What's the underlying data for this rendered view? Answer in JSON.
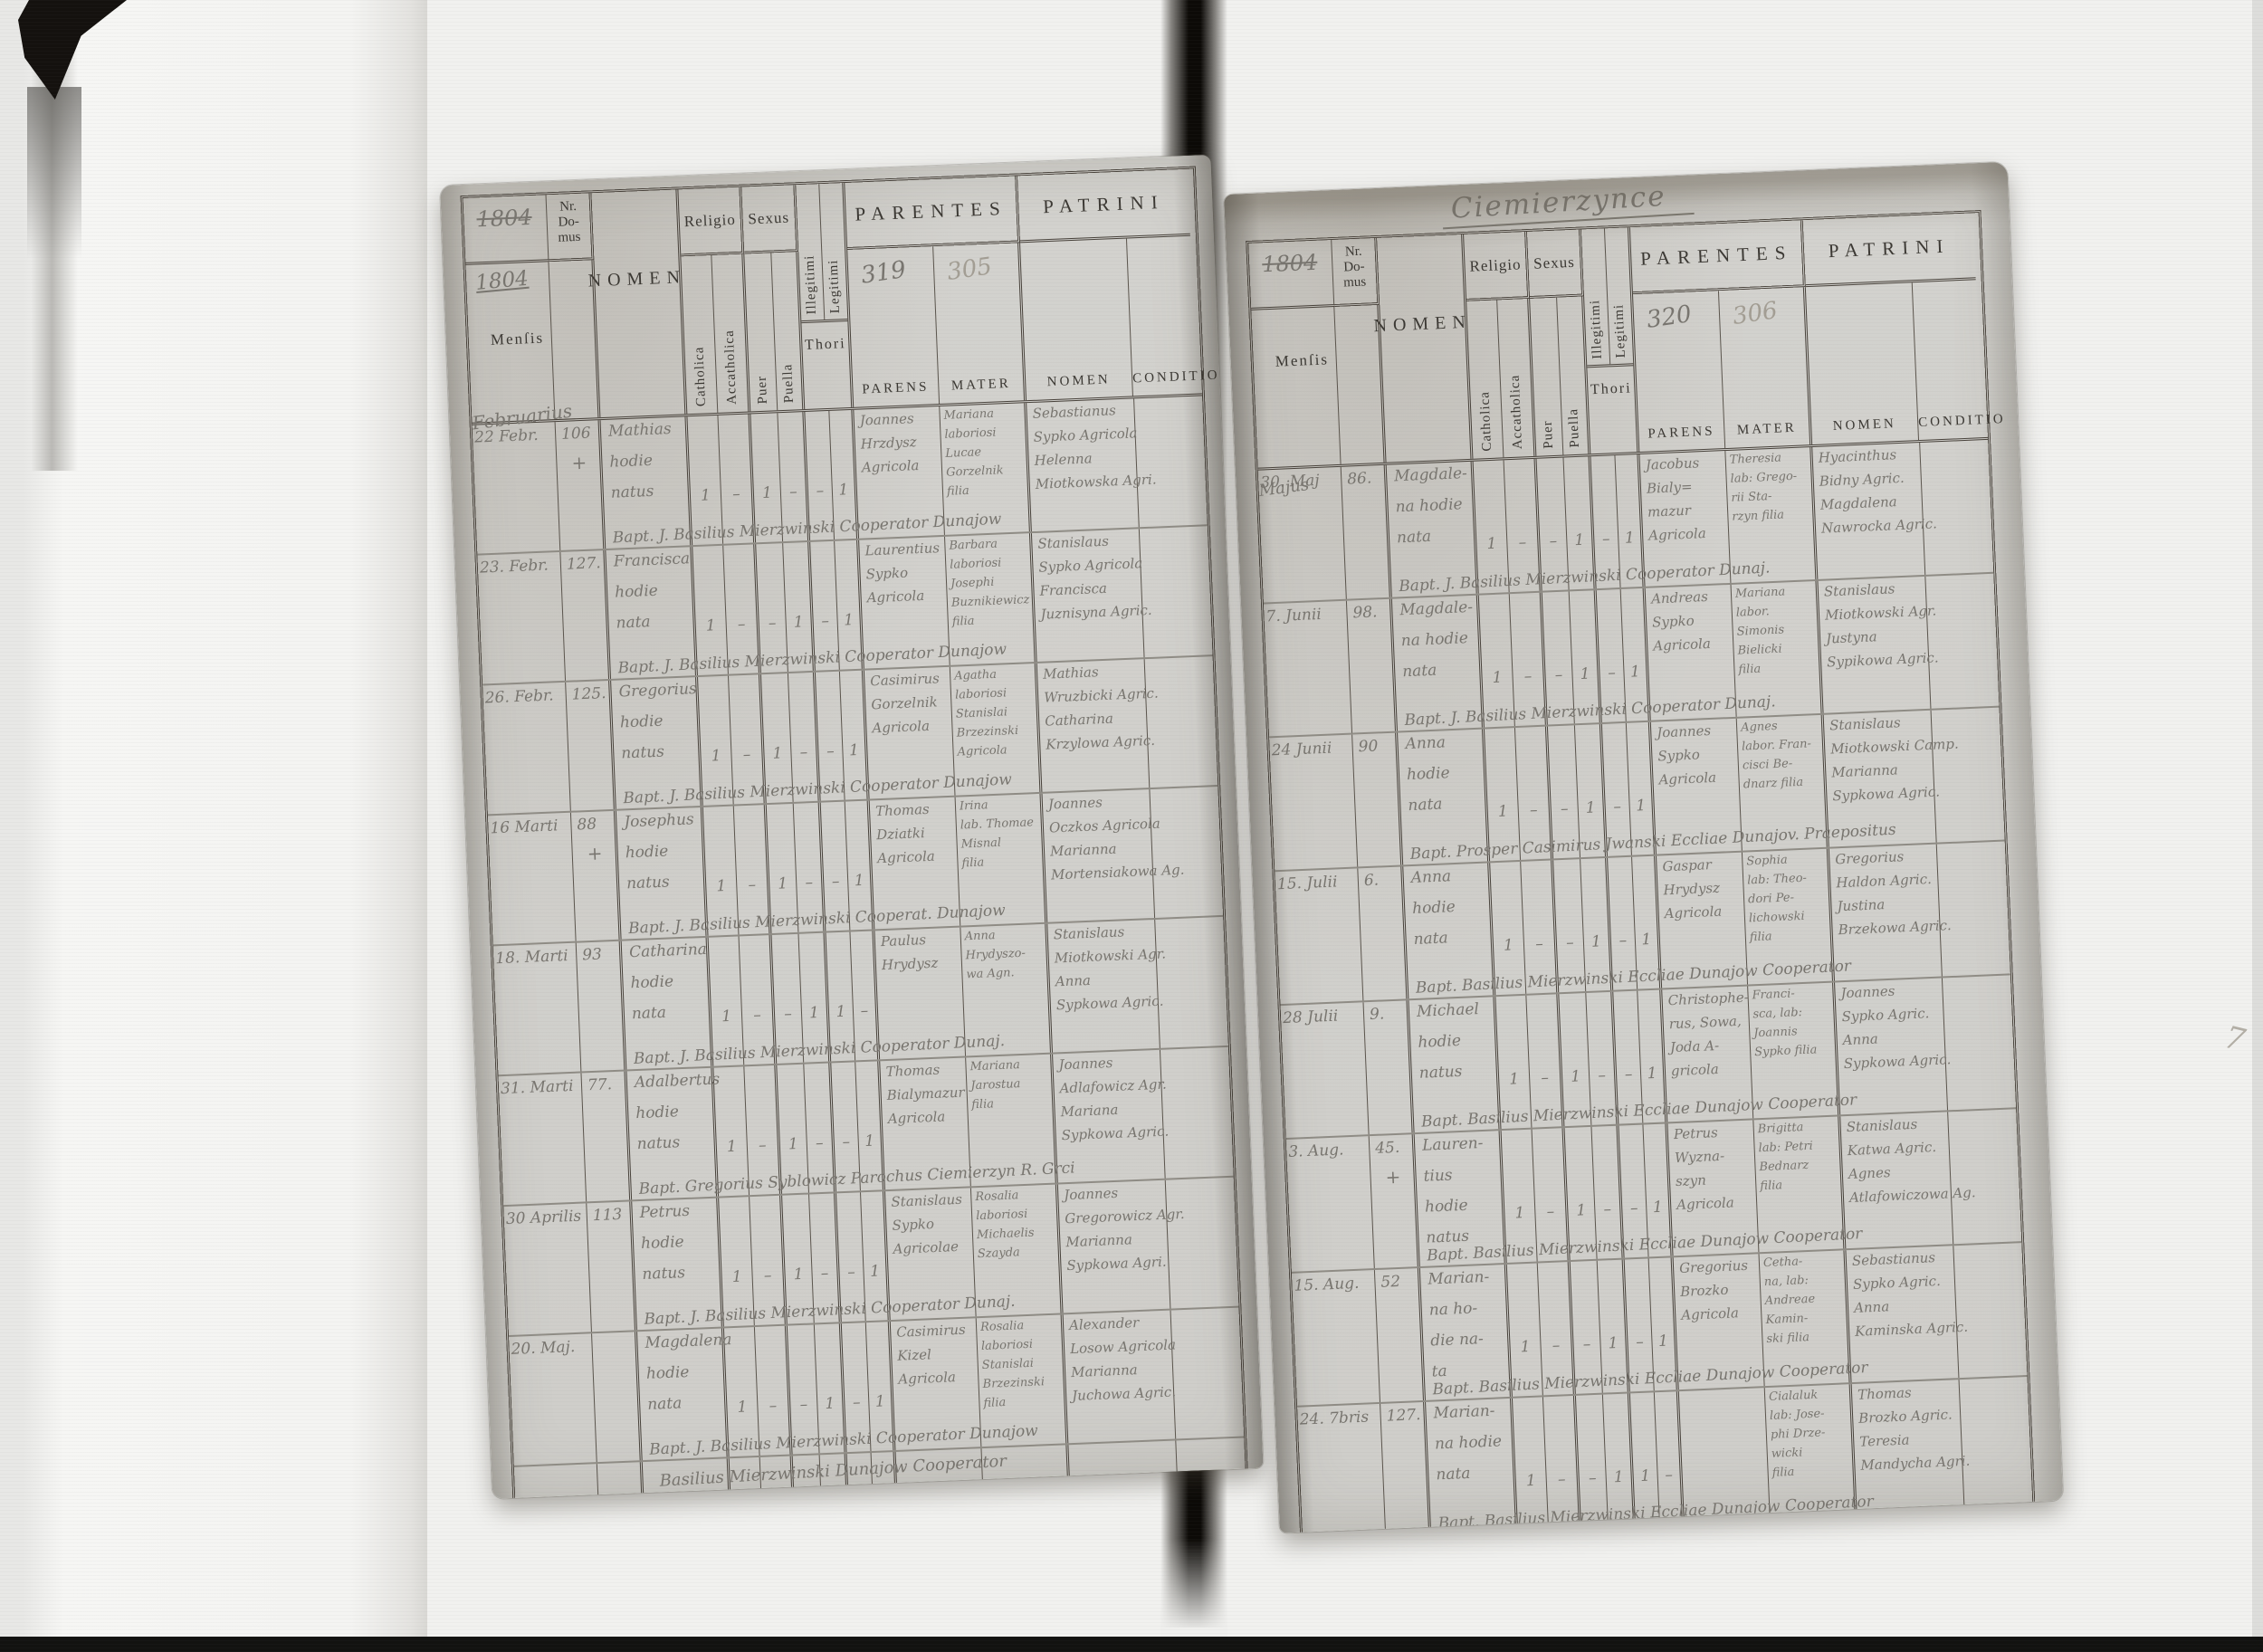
{
  "document_kind_note": "Scanned 1804 Latin baptismal register, two-page opening",
  "table_headers": {
    "mensis": "Menſis",
    "nr_domus": [
      "Nr.",
      "Do-",
      "mus"
    ],
    "nomen": "NOMEN",
    "religio": "Religio",
    "catholica": "Catholica",
    "accatholica": "Accatholica",
    "sexus": "Sexus",
    "puer": "Puer",
    "puella": "Puella",
    "illegitimi": "Illegitimi",
    "legitimi": "Legitimi",
    "thori": "Thori",
    "parentes": "PARENTES",
    "parens": "PARENS",
    "mater": "MATER",
    "patrini": "PATRINI",
    "patrini_nomen": "NOMEN",
    "conditio": "CONDITIO"
  },
  "left_page": {
    "year_struck": "1804",
    "year": "1804",
    "month_annotation": "Februarius",
    "parens_page_number": "319",
    "mater_page_number": "305",
    "closing_line": "Basilius Mierzwinski Dunajow Cooperator",
    "records": [
      {
        "date": "22 Febr.",
        "house_nr": "106",
        "house_mark": "+",
        "name_lines": [
          "Mathias",
          "hodie",
          "natus"
        ],
        "ticks": [
          "1",
          "–",
          "1",
          "–",
          "–",
          "1"
        ],
        "parens_lines": [
          "Joannes",
          "Hrzdysz",
          "Agricola"
        ],
        "mater_lines": [
          "Mariana",
          "laboriosi",
          "Lucae",
          "Gorzelnik",
          "filia"
        ],
        "patrini_lines": [
          "Sebastianus",
          "Sypko Agricola",
          "Helenna",
          "Miotkowska Agri."
        ],
        "baptizer_line": "Bapt. J. Basilius Mierzwinski Cooperator Dunajow"
      },
      {
        "date": "23. Febr.",
        "house_nr": "127.",
        "name_lines": [
          "Francisca",
          "hodie",
          "nata"
        ],
        "ticks": [
          "1",
          "–",
          "–",
          "1",
          "–",
          "1"
        ],
        "parens_lines": [
          "Laurentius",
          "Sypko",
          "Agricola"
        ],
        "mater_lines": [
          "Barbara",
          "laboriosi",
          "Josephi",
          "Buznikiewicz",
          "filia"
        ],
        "patrini_lines": [
          "Stanislaus",
          "Sypko Agricola",
          "Francisca",
          "Juznisyna Agric."
        ],
        "baptizer_line": "Bapt. J. Basilius Mierzwinski Cooperator Dunajow"
      },
      {
        "date": "26. Febr.",
        "house_nr": "125.",
        "name_lines": [
          "Gregorius",
          "hodie",
          "natus"
        ],
        "ticks": [
          "1",
          "–",
          "1",
          "–",
          "–",
          "1"
        ],
        "parens_lines": [
          "Casimirus",
          "Gorzelnik",
          "Agricola"
        ],
        "mater_lines": [
          "Agatha",
          "laboriosi",
          "Stanislai",
          "Brzezinski",
          "Agricola"
        ],
        "patrini_lines": [
          "Mathias",
          "Wruzbicki Agric.",
          "Catharina",
          "Krzylowa Agric."
        ],
        "baptizer_line": "Bapt. J. Basilius Mierzwinski Cooperator Dunajow"
      },
      {
        "date": "16 Marti",
        "house_nr": "88",
        "house_mark": "+",
        "name_lines": [
          "Josephus",
          "hodie",
          "natus"
        ],
        "ticks": [
          "1",
          "–",
          "1",
          "–",
          "–",
          "1"
        ],
        "parens_lines": [
          "Thomas",
          "Dziatki",
          "Agricola"
        ],
        "mater_lines": [
          "Irina",
          "lab. Thomae",
          "Misnal",
          "filia"
        ],
        "patrini_lines": [
          "Joannes",
          "Oczkos Agricola",
          "Marianna",
          "Mortensiakowa Ag."
        ],
        "baptizer_line": "Bapt. J. Basilius Mierzwinski Cooperat. Dunajow"
      },
      {
        "date": "18. Marti",
        "house_nr": "93",
        "name_lines": [
          "Catharina",
          "hodie",
          "nata"
        ],
        "ticks": [
          "1",
          "–",
          "–",
          "1",
          "1",
          "–"
        ],
        "parens_lines": [
          "Paulus",
          "Hrydysz"
        ],
        "mater_lines": [
          "Anna",
          "Hrydyszo-",
          "wa Agn."
        ],
        "patrini_lines": [
          "Stanislaus",
          "Miotkowski Agr.",
          "Anna",
          "Sypkowa Agric."
        ],
        "baptizer_line": "Bapt. J. Basilius Mierzwinski Cooperator Dunaj."
      },
      {
        "date": "31. Marti",
        "house_nr": "77.",
        "name_lines": [
          "Adalbertus",
          "hodie",
          "natus"
        ],
        "ticks": [
          "1",
          "–",
          "1",
          "–",
          "–",
          "1"
        ],
        "parens_lines": [
          "Thomas",
          "Bialymazur",
          "Agricola"
        ],
        "mater_lines": [
          "Mariana",
          "Jarostua",
          "filia"
        ],
        "patrini_lines": [
          "Joannes",
          "Adlafowicz Agr.",
          "Mariana",
          "Sypkowa Agric."
        ],
        "baptizer_line": "Bapt. Gregorius Syblowicz Parochus Ciemierzyn R. Grci"
      },
      {
        "date": "30 Aprilis",
        "house_nr": "113",
        "name_lines": [
          "Petrus",
          "hodie",
          "natus"
        ],
        "ticks": [
          "1",
          "–",
          "1",
          "–",
          "–",
          "1"
        ],
        "parens_lines": [
          "Stanislaus",
          "Sypko",
          "Agricolae"
        ],
        "mater_lines": [
          "Rosalia",
          "laboriosi",
          "Michaelis",
          "Szayda"
        ],
        "patrini_lines": [
          "Joannes",
          "Gregorowicz Agr.",
          "Marianna",
          "Sypkowa Agri."
        ],
        "baptizer_line": "Bapt. J. Basilius Mierzwinski Cooperator Dunaj."
      },
      {
        "date": "20. Maj.",
        "house_nr": "",
        "name_lines": [
          "Magdalena",
          "hodie",
          "nata"
        ],
        "ticks": [
          "1",
          "–",
          "–",
          "1",
          "–",
          "1"
        ],
        "parens_lines": [
          "Casimirus",
          "Kizel",
          "Agricola"
        ],
        "mater_lines": [
          "Rosalia",
          "laboriosi",
          "Stanislai",
          "Brzezinski",
          "filia"
        ],
        "patrini_lines": [
          "Alexander",
          "Losow Agricola",
          "Marianna",
          "Juchowa Agric."
        ],
        "baptizer_line": "Bapt. J. Basilius Mierzwinski Cooperator Dunajow"
      }
    ]
  },
  "right_page": {
    "title_annotation": "Ciemierzynce",
    "year_struck": "1804",
    "month_annotation": "Majus",
    "parens_page_number": "320",
    "mater_page_number": "306",
    "records": [
      {
        "date": "30. Maj",
        "house_nr": "86.",
        "name_lines": [
          "Magdale-",
          "na hodie",
          "nata"
        ],
        "ticks": [
          "1",
          "–",
          "–",
          "1",
          "–",
          "1"
        ],
        "parens_lines": [
          "Jacobus",
          "Bialy=",
          "mazur",
          "Agricola"
        ],
        "mater_lines": [
          "Theresia",
          "lab: Grego-",
          "rii Sta-",
          "rzyn filia"
        ],
        "patrini_lines": [
          "Hyacinthus",
          "Bidny Agric.",
          "Magdalena",
          "Nawrocka Agric."
        ],
        "baptizer_line": "Bapt. J. Basilius Mierzwinski Cooperator Dunaj."
      },
      {
        "date": "7. Junii",
        "house_nr": "98.",
        "name_lines": [
          "Magdale-",
          "na hodie",
          "nata"
        ],
        "ticks": [
          "1",
          "–",
          "–",
          "1",
          "–",
          "1"
        ],
        "parens_lines": [
          "Andreas",
          "Sypko",
          "Agricola"
        ],
        "mater_lines": [
          "Mariana",
          "labor.",
          "Simonis",
          "Bielicki",
          "filia"
        ],
        "patrini_lines": [
          "Stanislaus",
          "Miotkowski Agr.",
          "Justyna",
          "Sypikowa Agric."
        ],
        "baptizer_line": "Bapt. J. Basilius Mierzwinski Cooperator Dunaj."
      },
      {
        "date": "24 Junii",
        "house_nr": "90",
        "name_lines": [
          "Anna",
          "hodie",
          "nata"
        ],
        "ticks": [
          "1",
          "–",
          "–",
          "1",
          "–",
          "1"
        ],
        "parens_lines": [
          "Joannes",
          "Sypko",
          "Agricola"
        ],
        "mater_lines": [
          "Agnes",
          "labor. Fran-",
          "cisci Be-",
          "dnarz filia"
        ],
        "patrini_lines": [
          "Stanislaus",
          "Miotkowski Camp.",
          "Marianna",
          "Sypkowa Agric."
        ],
        "baptizer_line": "Bapt. Prosper Casimirus Jwanski Eccliae Dunajov. Praepositus"
      },
      {
        "date": "15. Julii",
        "house_nr": "6.",
        "name_lines": [
          "Anna",
          "hodie",
          "nata"
        ],
        "ticks": [
          "1",
          "–",
          "–",
          "1",
          "–",
          "1"
        ],
        "parens_lines": [
          "Gaspar",
          "Hrydysz",
          "Agricola"
        ],
        "mater_lines": [
          "Sophia",
          "lab: Theo-",
          "dori Pe-",
          "lichowski",
          "filia"
        ],
        "patrini_lines": [
          "Gregorius",
          "Haldon Agric.",
          "Justina",
          "Brzekowa Agric."
        ],
        "baptizer_line": "Bapt. Basilius Mierzwinski Eccliae Dunajow Cooperator"
      },
      {
        "date": "28 Julii",
        "house_nr": "9.",
        "name_lines": [
          "Michael",
          "hodie",
          "natus"
        ],
        "ticks": [
          "1",
          "–",
          "1",
          "–",
          "–",
          "1"
        ],
        "parens_lines": [
          "Christophe-",
          "rus, Sowa,",
          "Joda A-",
          "gricola"
        ],
        "mater_lines": [
          "Franci-",
          "sca, lab:",
          "Joannis",
          "Sypko filia"
        ],
        "patrini_lines": [
          "Joannes",
          "Sypko Agric.",
          "Anna",
          "Sypkowa Agric."
        ],
        "baptizer_line": "Bapt. Basilius Mierzwinski Eccliae Dunajow Cooperator"
      },
      {
        "date": "3. Aug.",
        "house_nr": "45.",
        "house_mark": "+",
        "name_lines": [
          "Lauren-",
          "tius",
          "hodie",
          "natus"
        ],
        "ticks": [
          "1",
          "–",
          "1",
          "–",
          "–",
          "1"
        ],
        "parens_lines": [
          "Petrus",
          "Wyzna-",
          "szyn",
          "Agricola"
        ],
        "mater_lines": [
          "Brigitta",
          "lab: Petri",
          "Bednarz",
          "filia"
        ],
        "patrini_lines": [
          "Stanislaus",
          "Katwa Agric.",
          "Agnes",
          "Atlafowiczowa Ag."
        ],
        "baptizer_line": "Bapt. Basilius Mierzwinski Eccliae Dunajow Cooperator"
      },
      {
        "date": "15. Aug.",
        "house_nr": "52",
        "name_lines": [
          "Marian-",
          "na ho-",
          "die na-",
          "ta"
        ],
        "ticks": [
          "1",
          "–",
          "–",
          "1",
          "–",
          "1"
        ],
        "parens_lines": [
          "Gregorius",
          "Brozko",
          "Agricola"
        ],
        "mater_lines": [
          "Cetha-",
          "na, lab:",
          "Andreae",
          "Kamin-",
          "ski filia"
        ],
        "patrini_lines": [
          "Sebastianus",
          "Sypko Agric.",
          "Anna",
          "Kaminska Agric."
        ],
        "baptizer_line": "Bapt. Basilius Mierzwinski Eccliae Dunajow Cooperator"
      },
      {
        "date": "24. 7bris",
        "house_nr": "127.",
        "name_lines": [
          "Marian-",
          "na hodie",
          "nata"
        ],
        "ticks": [
          "1",
          "–",
          "–",
          "1",
          "1",
          "–"
        ],
        "parens_lines": [],
        "mater_lines": [
          "Cialaluk",
          "lab: Jose-",
          "phi Drze-",
          "wicki",
          "filia"
        ],
        "patrini_lines": [
          "Thomas",
          "Brozko Agric.",
          "Teresia",
          "Mandycha Agri."
        ],
        "baptizer_line": "Bapt. Basilius Mierzwinski Eccliae Dunajow Cooperator"
      }
    ]
  },
  "stray_marks": {
    "bottom_right": "7"
  },
  "colors": {
    "scan_background": "#f1f1ef",
    "paper": "#d2d1cd",
    "printed_ink": "#3b3833",
    "handwriting_ink": "#78756f",
    "pencil": "#a39e94",
    "gutter_shadow": "#0c0a07"
  }
}
